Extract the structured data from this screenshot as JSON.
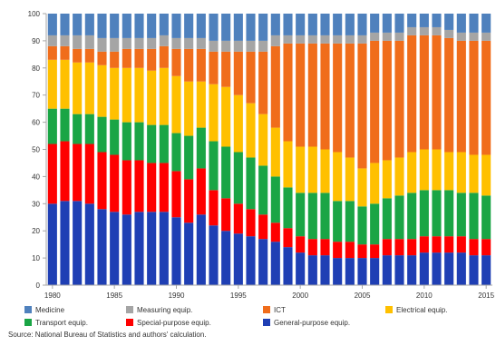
{
  "chart_data": {
    "type": "bar",
    "stacked": true,
    "x": [
      1980,
      1981,
      1982,
      1983,
      1984,
      1985,
      1986,
      1987,
      1988,
      1989,
      1990,
      1991,
      1992,
      1993,
      1994,
      1995,
      1996,
      1997,
      1998,
      1999,
      2000,
      2001,
      2002,
      2003,
      2004,
      2005,
      2006,
      2007,
      2008,
      2009,
      2010,
      2011,
      2012,
      2013,
      2014,
      2015
    ],
    "x_tick_labels": [
      "1980",
      "1985",
      "1990",
      "1995",
      "2000",
      "2005",
      "2010",
      "2015"
    ],
    "y_tick_labels": [
      "0",
      "10",
      "20",
      "30",
      "40",
      "50",
      "60",
      "70",
      "80",
      "90",
      "100"
    ],
    "ylim": [
      0,
      100
    ],
    "grid": false,
    "legend_position": "bottom",
    "series": [
      {
        "name": "General-purpose equip.",
        "color": "#1f3fb4",
        "values": [
          30,
          31,
          31,
          30,
          28,
          27,
          26,
          27,
          27,
          27,
          25,
          23,
          26,
          22,
          20,
          19,
          18,
          17,
          16,
          14,
          12,
          11,
          11,
          10,
          10,
          10,
          10,
          11,
          11,
          11,
          12,
          12,
          12,
          12,
          11,
          11
        ]
      },
      {
        "name": "Special-purpose equip.",
        "color": "#fe0000",
        "values": [
          22,
          22,
          21,
          22,
          21,
          21,
          20,
          19,
          18,
          18,
          17,
          16,
          17,
          13,
          12,
          11,
          10,
          9,
          7,
          7,
          6,
          6,
          6,
          6,
          6,
          5,
          5,
          6,
          6,
          6,
          6,
          6,
          6,
          6,
          6,
          6
        ]
      },
      {
        "name": "Transport equip.",
        "color": "#1aa545",
        "values": [
          13,
          12,
          11,
          11,
          13,
          13,
          14,
          14,
          14,
          14,
          14,
          16,
          15,
          18,
          19,
          19,
          19,
          18,
          17,
          15,
          16,
          17,
          17,
          15,
          15,
          14,
          15,
          15,
          16,
          17,
          17,
          17,
          17,
          16,
          17,
          16
        ]
      },
      {
        "name": "Electrical equip.",
        "color": "#ffc000",
        "values": [
          18,
          18,
          19,
          19,
          19,
          19,
          20,
          20,
          20,
          21,
          21,
          20,
          17,
          21,
          22,
          21,
          20,
          19,
          18,
          17,
          17,
          17,
          16,
          18,
          16,
          14,
          15,
          14,
          14,
          15,
          15,
          15,
          14,
          15,
          14,
          15
        ]
      },
      {
        "name": "ICT",
        "color": "#f06d1b",
        "values": [
          5,
          5,
          5,
          5,
          5,
          6,
          7,
          7,
          8,
          8,
          10,
          12,
          12,
          12,
          13,
          16,
          19,
          23,
          30,
          36,
          38,
          38,
          39,
          40,
          42,
          46,
          45,
          44,
          43,
          43,
          42,
          42,
          42,
          41,
          42,
          42
        ]
      },
      {
        "name": "Measuring equip.",
        "color": "#a5a5a5",
        "values": [
          4,
          4,
          5,
          5,
          5,
          5,
          4,
          4,
          4,
          4,
          4,
          4,
          4,
          4,
          4,
          4,
          4,
          4,
          4,
          3,
          3,
          3,
          3,
          3,
          3,
          3,
          3,
          3,
          3,
          3,
          3,
          3,
          3,
          3,
          3,
          3
        ]
      },
      {
        "name": "Medicine",
        "color": "#4f81bd",
        "values": [
          8,
          8,
          8,
          8,
          9,
          9,
          9,
          9,
          9,
          8,
          9,
          9,
          9,
          10,
          10,
          10,
          10,
          10,
          8,
          8,
          8,
          8,
          8,
          8,
          8,
          8,
          7,
          7,
          7,
          5,
          5,
          5,
          6,
          7,
          7,
          7
        ]
      }
    ],
    "legend_rows": [
      [
        "Medicine",
        "Measuring equip.",
        "ICT",
        "Electrical equip."
      ],
      [
        "Transport equip.",
        "Special-purpose equip.",
        "General-purpose equip."
      ]
    ],
    "source": "Source: National Bureau of Statistics and authors' calculation."
  }
}
